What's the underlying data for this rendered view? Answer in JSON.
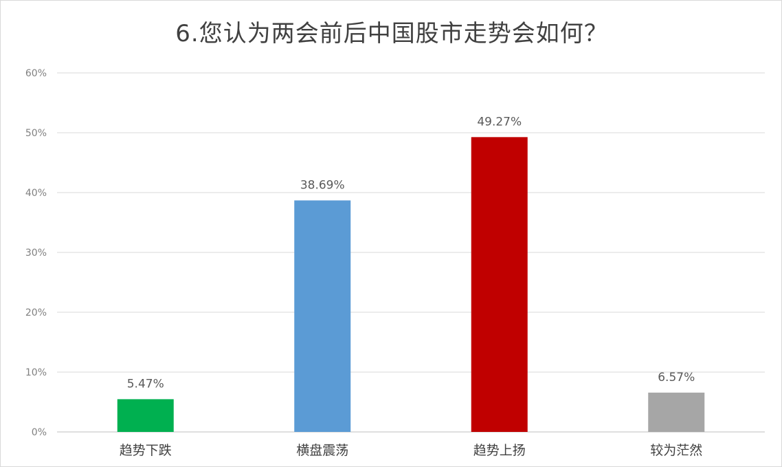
{
  "chart_data": {
    "type": "bar",
    "title": "6.您认为两会前后中国股市走势会如何？",
    "categories": [
      "趋势下跌",
      "横盘震荡",
      "趋势上扬",
      "较为茫然"
    ],
    "values": [
      5.47,
      38.69,
      49.27,
      6.57
    ],
    "data_labels": [
      "5.47%",
      "38.69%",
      "49.27%",
      "6.57%"
    ],
    "colors": [
      "#00b050",
      "#5b9bd5",
      "#c00000",
      "#a6a6a6"
    ],
    "ylim": [
      0,
      60
    ],
    "y_ticks": [
      0,
      10,
      20,
      30,
      40,
      50,
      60
    ],
    "y_tick_labels": [
      "0%",
      "10%",
      "20%",
      "30%",
      "40%",
      "50%",
      "60%"
    ],
    "grid": true,
    "legend": "none",
    "xlabel": "",
    "ylabel": ""
  }
}
